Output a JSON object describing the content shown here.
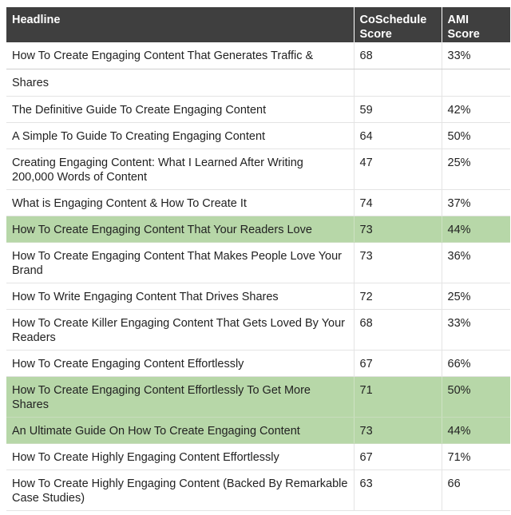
{
  "table": {
    "headers": {
      "headline": "Headline",
      "coschedule_line1": "CoSchedule",
      "coschedule_line2": "Score",
      "ami_line1": "AMI",
      "ami_line2": "Score"
    },
    "first_row": {
      "headline_part1": "How To Create Engaging Content That Generates Traffic &",
      "headline_part2": "Shares",
      "coschedule": "68",
      "ami": "33%"
    },
    "rows": [
      {
        "headline": "The Definitive Guide To Create Engaging Content",
        "coschedule": "59",
        "ami": "42%"
      },
      {
        "headline": "A Simple To Guide To Creating Engaging Content",
        "coschedule": "64",
        "ami": "50%"
      },
      {
        "headline": "Creating Engaging Content: What I Learned After Writing 200,000 Words of Content",
        "coschedule": "47",
        "ami": "25%"
      },
      {
        "headline": "What is Engaging Content & How To Create It",
        "coschedule": "74",
        "ami": "37%"
      },
      {
        "headline": "How To Create Engaging Content That Your Readers Love",
        "coschedule": "73",
        "ami": "44%"
      },
      {
        "headline": "How To Create Engaging Content That Makes People Love Your Brand",
        "coschedule": "73",
        "ami": "36%"
      },
      {
        "headline": "How To Write Engaging Content That Drives Shares",
        "coschedule": "72",
        "ami": "25%"
      },
      {
        "headline": "How To Create Killer Engaging Content That Gets Loved By Your Readers",
        "coschedule": "68",
        "ami": "33%"
      },
      {
        "headline": "How To Create Engaging Content Effortlessly",
        "coschedule": "67",
        "ami": "66%"
      },
      {
        "headline": "How To Create Engaging Content Effortlessly To Get More Shares",
        "coschedule": "71",
        "ami": "50%"
      },
      {
        "headline": "An Ultimate Guide On How To Create Engaging Content",
        "coschedule": "73",
        "ami": "44%"
      },
      {
        "headline": "How To Create Highly Engaging Content Effortlessly",
        "coschedule": "67",
        "ami": "71%"
      },
      {
        "headline": "How To Create Highly Engaging Content (Backed By Remarkable Case Studies)",
        "coschedule": "63",
        "ami": "66"
      }
    ],
    "highlight_color": "#b7d7a8",
    "header_color": "#3f3f3f"
  }
}
